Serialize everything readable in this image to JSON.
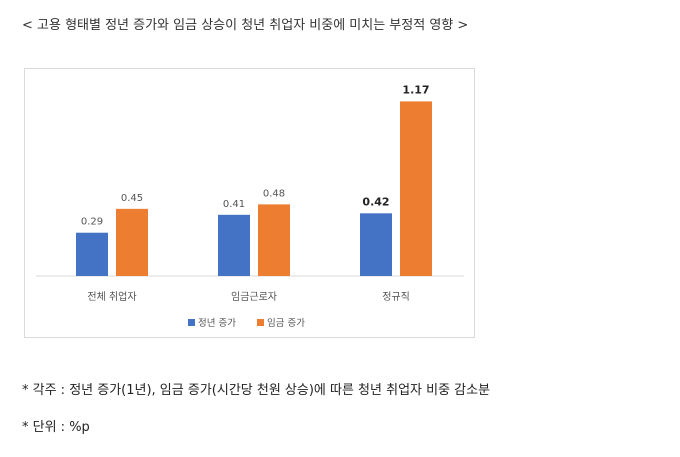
{
  "title": "< 고용 형태별 정년 증가와 임금 상승이 청년 취업자 비중에 미치는 부정적 영향 >",
  "notes": {
    "note1": "* 각주 : 정년 증가(1년), 임금 증가(시간당 천원 상승)에 따른 청년 취업자 비중 감소분",
    "note2": "* 단위 : %p"
  },
  "colors": {
    "series1": "#4472C4",
    "series2": "#ED7D31",
    "axis": "#d9d9d9"
  },
  "chart_data": {
    "type": "bar",
    "categories": [
      "전체 취업자",
      "임금근로자",
      "정규직"
    ],
    "series": [
      {
        "name": "정년 증가",
        "values": [
          0.29,
          0.41,
          0.42
        ],
        "labels": [
          "0.29",
          "0.41",
          "0.42"
        ],
        "bold": [
          false,
          false,
          true
        ]
      },
      {
        "name": "임금 증가",
        "values": [
          0.45,
          0.48,
          1.17
        ],
        "labels": [
          "0.45",
          "0.48",
          "1.17"
        ],
        "bold": [
          false,
          false,
          true
        ]
      }
    ],
    "ylim": [
      0,
      1.3
    ],
    "grid": false,
    "legend": "bottom"
  }
}
